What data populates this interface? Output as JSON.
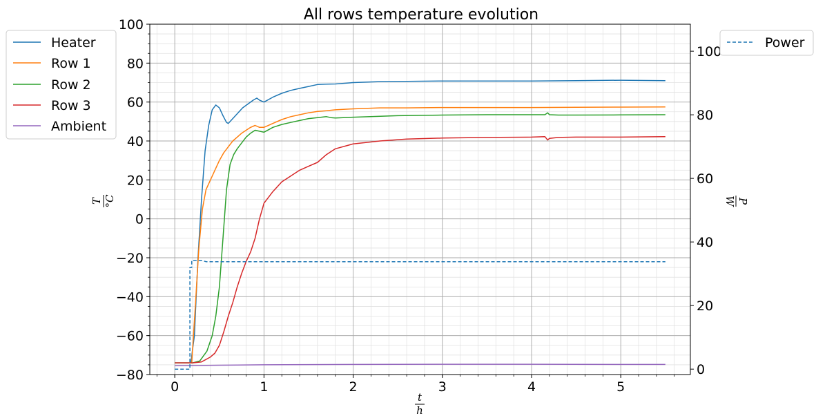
{
  "chart_data": {
    "type": "line",
    "title": "All rows temperature evolution",
    "xlabel": {
      "numerator": "t",
      "denominator": "h"
    },
    "ylabel_left": {
      "numerator": "T",
      "denominator": "°C"
    },
    "ylabel_right": {
      "numerator": "P",
      "denominator": "W"
    },
    "xlim": [
      -0.28,
      5.78
    ],
    "ylim_left": [
      -80,
      100
    ],
    "ylim_right": [
      -1.7,
      108.5
    ],
    "x_ticks": [
      0,
      1,
      2,
      3,
      4,
      5
    ],
    "x_tick_labels": [
      "0",
      "1",
      "2",
      "3",
      "4",
      "5"
    ],
    "y_ticks_left": [
      -80,
      -60,
      -40,
      -20,
      0,
      20,
      40,
      60,
      80,
      100
    ],
    "y_tick_labels_left": [
      "−80",
      "−60",
      "−40",
      "−20",
      "0",
      "20",
      "40",
      "60",
      "80",
      "100"
    ],
    "y_ticks_right": [
      0,
      20,
      40,
      60,
      80,
      100
    ],
    "y_tick_labels_right": [
      "0",
      "20",
      "40",
      "60",
      "80",
      "100"
    ],
    "grid": true,
    "minor_grid": true,
    "legend_left_placement": "outside-top-left",
    "legend_right_placement": "outside-top-right",
    "series": [
      {
        "name": "Heater",
        "axis": "left",
        "color": "#1f77b4",
        "dash": false,
        "x": [
          0,
          0.1,
          0.18,
          0.22,
          0.26,
          0.3,
          0.34,
          0.38,
          0.42,
          0.46,
          0.5,
          0.54,
          0.58,
          0.6,
          0.64,
          0.7,
          0.76,
          0.82,
          0.88,
          0.92,
          0.95,
          1.0,
          1.1,
          1.2,
          1.3,
          1.4,
          1.5,
          1.6,
          1.7,
          1.8,
          2.0,
          2.3,
          2.6,
          3.0,
          3.5,
          4.0,
          4.5,
          5.0,
          5.5
        ],
        "y": [
          -74,
          -74,
          -74,
          -60,
          -20,
          10,
          35,
          48,
          56,
          58.5,
          57,
          53,
          49.5,
          49,
          51,
          54,
          57,
          59,
          61,
          62,
          61,
          60,
          62.5,
          64.5,
          66,
          67,
          68,
          69,
          69.2,
          69.3,
          70,
          70.5,
          70.6,
          70.8,
          70.8,
          70.8,
          71,
          71.2,
          71
        ]
      },
      {
        "name": "Row 1",
        "axis": "left",
        "color": "#ff7f0e",
        "dash": false,
        "x": [
          0,
          0.1,
          0.19,
          0.23,
          0.27,
          0.31,
          0.35,
          0.4,
          0.45,
          0.5,
          0.55,
          0.6,
          0.65,
          0.7,
          0.75,
          0.8,
          0.85,
          0.9,
          0.95,
          1.0,
          1.1,
          1.2,
          1.3,
          1.4,
          1.5,
          1.6,
          1.7,
          1.8,
          2.0,
          2.3,
          2.6,
          3.0,
          3.5,
          4.0,
          4.5,
          5.0,
          5.5
        ],
        "y": [
          -74,
          -74,
          -74,
          -45,
          -15,
          5,
          15,
          20,
          25,
          30,
          34,
          37,
          40,
          42,
          44,
          45.5,
          47,
          48,
          47,
          47,
          49,
          51,
          52.5,
          53.5,
          54.5,
          55.2,
          55.5,
          56,
          56.5,
          57,
          57,
          57.2,
          57.2,
          57.2,
          57.3,
          57.4,
          57.5
        ]
      },
      {
        "name": "Row 2",
        "axis": "left",
        "color": "#2ca02c",
        "dash": false,
        "x": [
          0,
          0.1,
          0.2,
          0.28,
          0.36,
          0.42,
          0.46,
          0.5,
          0.54,
          0.58,
          0.62,
          0.66,
          0.7,
          0.75,
          0.8,
          0.85,
          0.9,
          0.95,
          1.0,
          1.1,
          1.2,
          1.3,
          1.4,
          1.5,
          1.6,
          1.7,
          1.75,
          1.8,
          2.0,
          2.5,
          3.0,
          3.5,
          4.0,
          4.15,
          4.18,
          4.2,
          4.3,
          4.5,
          5.0,
          5.5
        ],
        "y": [
          -74,
          -74,
          -74,
          -73,
          -68,
          -60,
          -50,
          -35,
          -10,
          15,
          28,
          33,
          36,
          39,
          42,
          44,
          45.5,
          45,
          44.5,
          47,
          48.5,
          49.5,
          50.5,
          51.5,
          52,
          52.5,
          52,
          51.8,
          52.2,
          53,
          53.3,
          53.5,
          53.5,
          53.5,
          54.5,
          53.5,
          53.3,
          53.3,
          53.4,
          53.5
        ]
      },
      {
        "name": "Row 3",
        "axis": "left",
        "color": "#d62728",
        "dash": false,
        "x": [
          0,
          0.1,
          0.2,
          0.3,
          0.4,
          0.45,
          0.5,
          0.55,
          0.6,
          0.65,
          0.7,
          0.75,
          0.8,
          0.85,
          0.9,
          0.95,
          1.0,
          1.1,
          1.2,
          1.3,
          1.4,
          1.5,
          1.6,
          1.7,
          1.8,
          2.0,
          2.3,
          2.6,
          3.0,
          3.5,
          4.0,
          4.15,
          4.18,
          4.2,
          4.3,
          4.5,
          5.0,
          5.5
        ],
        "y": [
          -74,
          -74,
          -74,
          -73.5,
          -71,
          -69,
          -65,
          -58,
          -50,
          -43,
          -35,
          -28,
          -22,
          -17,
          -10,
          0,
          8,
          14,
          19,
          22,
          25,
          27,
          29,
          33,
          36,
          38.5,
          40,
          41,
          41.5,
          41.8,
          42,
          42.2,
          40.5,
          41.3,
          41.8,
          42,
          42,
          42.2
        ]
      },
      {
        "name": "Ambient",
        "axis": "left",
        "color": "#9467bd",
        "dash": false,
        "x": [
          0,
          0.2,
          0.5,
          1.0,
          1.5,
          2.0,
          3.0,
          4.0,
          5.0,
          5.5
        ],
        "y": [
          -75.5,
          -75.4,
          -75.2,
          -75,
          -74.9,
          -74.8,
          -74.7,
          -74.7,
          -74.8,
          -74.8
        ]
      },
      {
        "name": "Power",
        "axis": "right",
        "color": "#1f77b4",
        "dash": true,
        "x": [
          0,
          0.17,
          0.17,
          0.19,
          0.19,
          0.3,
          0.35,
          0.5,
          1.0,
          2.0,
          3.0,
          4.0,
          5.0,
          5.5
        ],
        "y": [
          0,
          0,
          32,
          32,
          34.2,
          34.2,
          33.8,
          33.8,
          33.8,
          33.8,
          33.8,
          33.8,
          33.8,
          33.8
        ]
      }
    ]
  },
  "legend_left": [
    "Heater",
    "Row 1",
    "Row 2",
    "Row 3",
    "Ambient"
  ],
  "legend_right": [
    "Power"
  ]
}
